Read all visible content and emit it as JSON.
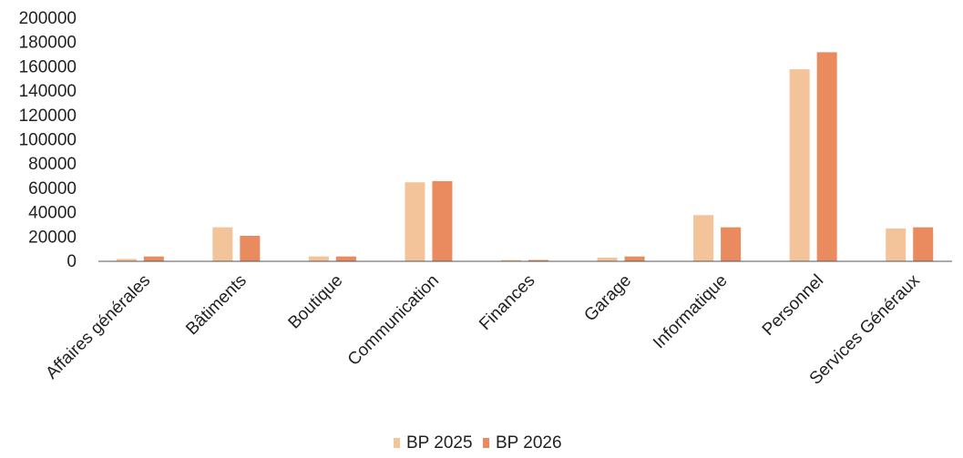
{
  "chart_data": {
    "type": "bar",
    "categories": [
      "Affaires générales",
      "Bâtiments",
      "Boutique",
      "Communication",
      "Finances",
      "Garage",
      "Informatique",
      "Personnel",
      "Services Généraux"
    ],
    "series": [
      {
        "name": "BP 2025",
        "values": [
          2000,
          28000,
          4000,
          65000,
          500,
          3000,
          38000,
          158000,
          27000
        ]
      },
      {
        "name": "BP 2026",
        "values": [
          4000,
          21000,
          4000,
          66000,
          500,
          4000,
          28000,
          172000,
          28000
        ]
      }
    ],
    "ylim": [
      0,
      200000
    ],
    "yticks": [
      "0",
      "20000",
      "40000",
      "60000",
      "80000",
      "100000",
      "120000",
      "140000",
      "160000",
      "180000",
      "200000"
    ],
    "colors": {
      "BP 2025": "#f3c49a",
      "BP 2026": "#e98a5f"
    },
    "legend_position": "bottom",
    "grid": false
  }
}
